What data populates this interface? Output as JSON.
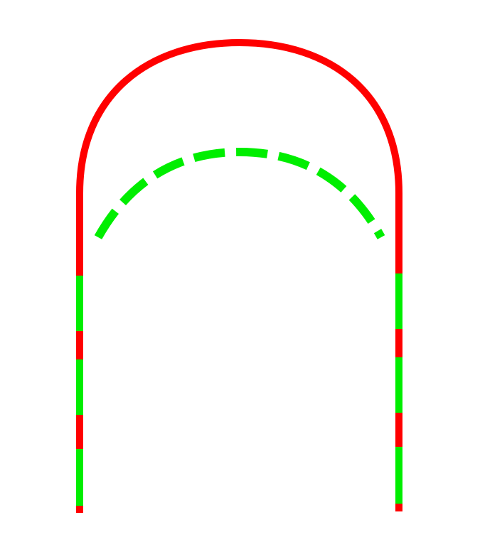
{
  "colors": {
    "background": "#ffffff",
    "outer_arch": "#ff0000",
    "dashes": "#00ee00"
  }
}
